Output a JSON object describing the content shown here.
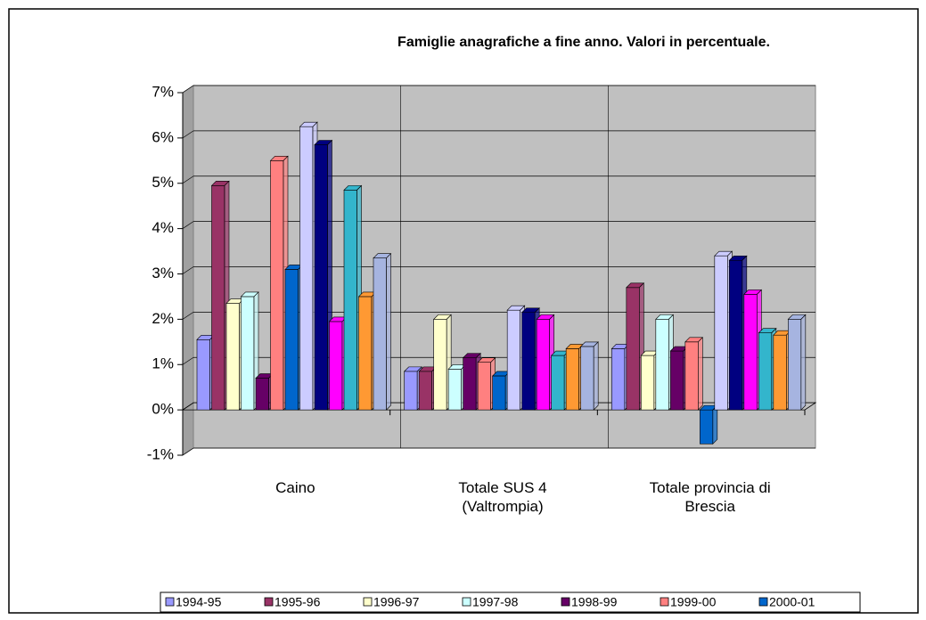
{
  "chart_data": {
    "type": "bar",
    "title": "Famiglie anagrafiche a fine anno. Valori in percentuale.",
    "categories": [
      "Caino",
      "Totale SUS 4 (Valtrompia)",
      "Totale provincia di Brescia"
    ],
    "series": [
      {
        "name": "1994-95",
        "color": "#9999ff",
        "values": [
          1.55,
          0.85,
          1.35
        ]
      },
      {
        "name": "1995-96",
        "color": "#993366",
        "values": [
          4.95,
          0.85,
          2.7
        ]
      },
      {
        "name": "1996-97",
        "color": "#ffffcc",
        "values": [
          2.35,
          2.0,
          1.2
        ]
      },
      {
        "name": "1997-98",
        "color": "#ccffff",
        "values": [
          2.5,
          0.9,
          2.0
        ]
      },
      {
        "name": "1998-99",
        "color": "#660066",
        "values": [
          0.7,
          1.15,
          1.3
        ]
      },
      {
        "name": "1999-00",
        "color": "#ff8080",
        "values": [
          5.5,
          1.05,
          1.5
        ]
      },
      {
        "name": "2000-01",
        "color": "#0066cc",
        "values": [
          3.1,
          0.75,
          -0.75
        ]
      },
      {
        "name": null,
        "color": "#ccccff",
        "values": [
          6.25,
          2.2,
          3.4
        ]
      },
      {
        "name": null,
        "color": "#000080",
        "values": [
          5.85,
          2.15,
          3.3
        ]
      },
      {
        "name": null,
        "color": "#ff00ff",
        "values": [
          1.95,
          2.0,
          2.55
        ]
      },
      {
        "name": null,
        "color": "#33b5cc",
        "values": [
          4.85,
          1.2,
          1.7
        ]
      },
      {
        "name": null,
        "color": "#ff9933",
        "values": [
          2.5,
          1.35,
          1.65
        ]
      },
      {
        "name": null,
        "color": "#a6b4e0",
        "values": [
          3.35,
          1.4,
          2.0
        ]
      }
    ],
    "ylim": [
      -1,
      7
    ],
    "yticks": [
      {
        "value": -1,
        "label": "-1%"
      },
      {
        "value": 0,
        "label": "0%"
      },
      {
        "value": 1,
        "label": "1%"
      },
      {
        "value": 2,
        "label": "2%"
      },
      {
        "value": 3,
        "label": "3%"
      },
      {
        "value": 4,
        "label": "4%"
      },
      {
        "value": 5,
        "label": "5%"
      },
      {
        "value": 6,
        "label": "6%"
      },
      {
        "value": 7,
        "label": "7%"
      }
    ],
    "grid": true
  }
}
